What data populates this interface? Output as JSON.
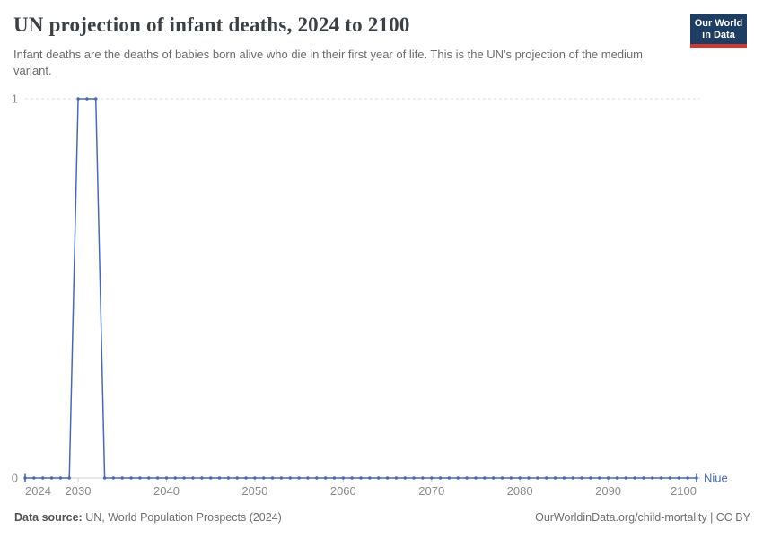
{
  "header": {
    "title": "UN projection of infant deaths, 2024 to 2100",
    "subtitle": "Infant deaths are the deaths of babies born alive who die in their first year of life. This is the UN's projection of the medium variant.",
    "logo": {
      "line1": "Our World",
      "line2": "in Data"
    }
  },
  "footer": {
    "source_label": "Data source:",
    "source_text": " UN, World Population Prospects (2024)",
    "attribution": "OurWorldinData.org/child-mortality | CC BY"
  },
  "colors": {
    "series_line": "#4a69ad",
    "gridline": "#dcdcdc",
    "axis_line": "#cfcfcf",
    "tick_text": "#8b8b8b",
    "logo_background": "#1d3d63",
    "logo_stripe": "#cc3b33"
  },
  "chart_data": {
    "type": "line",
    "title": "UN projection of infant deaths, 2024 to 2100",
    "xlabel": "",
    "ylabel": "",
    "x_range": [
      2024,
      2100
    ],
    "ylim": [
      0,
      1
    ],
    "x_ticks": [
      2024,
      2030,
      2040,
      2050,
      2060,
      2070,
      2080,
      2090,
      2100
    ],
    "y_ticks": [
      0,
      1
    ],
    "grid": "horizontal-dashed-at-1",
    "legend": "label-at-line-end",
    "series": [
      {
        "name": "Niue",
        "color": "#4a69ad",
        "years": [
          2024,
          2025,
          2026,
          2027,
          2028,
          2029,
          2030,
          2031,
          2032,
          2033,
          2034,
          2035,
          2036,
          2037,
          2038,
          2039,
          2040,
          2041,
          2042,
          2043,
          2044,
          2045,
          2046,
          2047,
          2048,
          2049,
          2050,
          2051,
          2052,
          2053,
          2054,
          2055,
          2056,
          2057,
          2058,
          2059,
          2060,
          2061,
          2062,
          2063,
          2064,
          2065,
          2066,
          2067,
          2068,
          2069,
          2070,
          2071,
          2072,
          2073,
          2074,
          2075,
          2076,
          2077,
          2078,
          2079,
          2080,
          2081,
          2082,
          2083,
          2084,
          2085,
          2086,
          2087,
          2088,
          2089,
          2090,
          2091,
          2092,
          2093,
          2094,
          2095,
          2096,
          2097,
          2098,
          2099,
          2100
        ],
        "values": [
          0,
          0,
          0,
          0,
          0,
          0,
          1,
          1,
          1,
          0,
          0,
          0,
          0,
          0,
          0,
          0,
          0,
          0,
          0,
          0,
          0,
          0,
          0,
          0,
          0,
          0,
          0,
          0,
          0,
          0,
          0,
          0,
          0,
          0,
          0,
          0,
          0,
          0,
          0,
          0,
          0,
          0,
          0,
          0,
          0,
          0,
          0,
          0,
          0,
          0,
          0,
          0,
          0,
          0,
          0,
          0,
          0,
          0,
          0,
          0,
          0,
          0,
          0,
          0,
          0,
          0,
          0,
          0,
          0,
          0,
          0,
          0,
          0,
          0,
          0,
          0,
          0
        ]
      }
    ]
  }
}
